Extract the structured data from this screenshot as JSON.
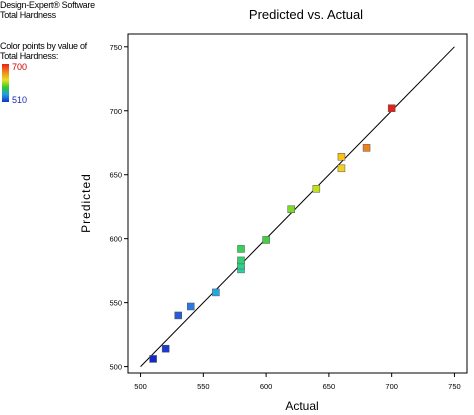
{
  "software": {
    "line1": "Design-Expert® Software",
    "line2": "Total Hardness"
  },
  "legend": {
    "title_line1": "Color points by value of",
    "title_line2": "Total Hardness:",
    "max_label": "700",
    "min_label": "510",
    "max_color": "#e8201a",
    "min_color": "#1432c8"
  },
  "chart_data": {
    "type": "scatter",
    "title": "Predicted vs. Actual",
    "xlabel": "Actual",
    "ylabel": "Predicted",
    "xlim": [
      490,
      760
    ],
    "ylim": [
      495,
      760
    ],
    "xticks": [
      500,
      550,
      600,
      650,
      700,
      750
    ],
    "yticks": [
      500,
      550,
      600,
      650,
      700,
      750
    ],
    "xtick_labels": [
      "500",
      "550",
      "600",
      "650",
      "700",
      "750"
    ],
    "ytick_labels": [
      "500",
      "550",
      "600",
      "650",
      "700",
      "750"
    ],
    "reference_line": {
      "from": [
        500,
        500
      ],
      "to": [
        750,
        750
      ]
    },
    "points": [
      {
        "x": 510,
        "y": 506,
        "color": "#1428c8"
      },
      {
        "x": 520,
        "y": 514,
        "color": "#1a3ad0"
      },
      {
        "x": 530,
        "y": 540,
        "color": "#2a5ad8"
      },
      {
        "x": 540,
        "y": 547,
        "color": "#2a78e0"
      },
      {
        "x": 560,
        "y": 558,
        "color": "#1ea8e8"
      },
      {
        "x": 580,
        "y": 576,
        "color": "#2cd0a8"
      },
      {
        "x": 580,
        "y": 579,
        "color": "#30d08a"
      },
      {
        "x": 580,
        "y": 583,
        "color": "#30d070"
      },
      {
        "x": 580,
        "y": 592,
        "color": "#38d058"
      },
      {
        "x": 600,
        "y": 599,
        "color": "#40d040"
      },
      {
        "x": 620,
        "y": 623,
        "color": "#7cd82a"
      },
      {
        "x": 640,
        "y": 639,
        "color": "#c0e020"
      },
      {
        "x": 660,
        "y": 655,
        "color": "#f0d020"
      },
      {
        "x": 660,
        "y": 664,
        "color": "#f8c018"
      },
      {
        "x": 680,
        "y": 671,
        "color": "#f08020"
      },
      {
        "x": 700,
        "y": 702,
        "color": "#e82018"
      }
    ]
  }
}
